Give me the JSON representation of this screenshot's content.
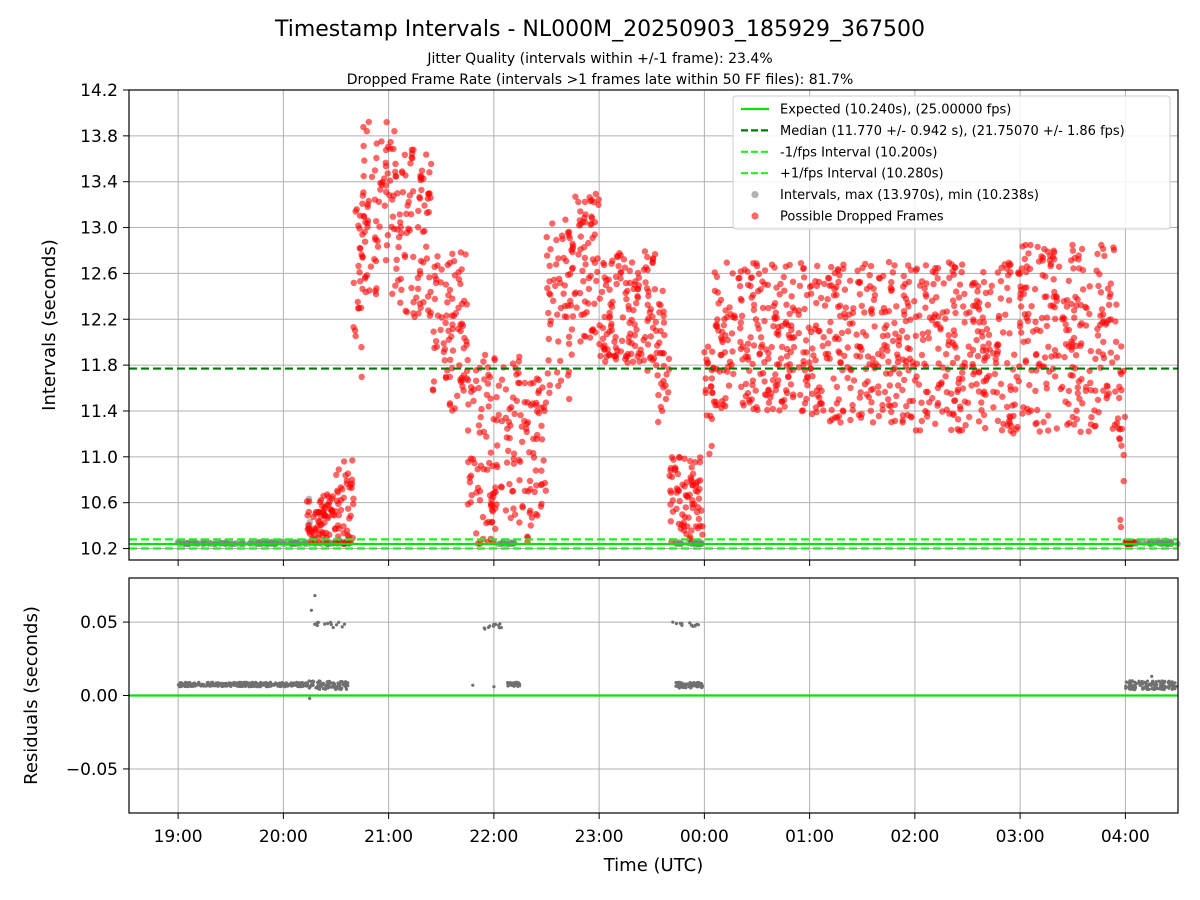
{
  "figure": {
    "title": "Timestamp Intervals - NL000M_20250903_185929_367500",
    "subtitle_1": "Jitter Quality (intervals within +/-1 frame): 23.4%",
    "subtitle_2": "Dropped Frame Rate (intervals >1 frames late within 50 FF files): 81.7%"
  },
  "colors": {
    "expected": "#00e400",
    "median": "#007700",
    "interval_band": "#22ee22",
    "normal_points": "#808080",
    "dropped_points": "#ff0000",
    "residual_points": "#707070",
    "grid": "#b0b0b0"
  },
  "chart_data": [
    {
      "id": "intervals",
      "type": "scatter",
      "title": "",
      "xlabel": "",
      "ylabel": "Intervals (seconds)",
      "x_type": "time",
      "xlim": [
        "18:32",
        "04:30"
      ],
      "ylim": [
        10.1,
        14.2
      ],
      "grid": true,
      "legend_position": "top-right",
      "x_ticks": [
        "19:00",
        "20:00",
        "21:00",
        "22:00",
        "23:00",
        "00:00",
        "01:00",
        "02:00",
        "03:00",
        "04:00"
      ],
      "y_ticks": [
        "10.2",
        "10.6",
        "11.0",
        "11.4",
        "11.8",
        "12.2",
        "12.6",
        "13.0",
        "13.4",
        "13.8",
        "14.2"
      ],
      "y_tick_values": [
        10.2,
        10.6,
        11.0,
        11.4,
        11.8,
        12.2,
        12.6,
        13.0,
        13.4,
        13.8,
        14.2
      ],
      "reference_lines": [
        {
          "name": "Expected (10.240s), (25.00000 fps)",
          "y": 10.24,
          "style": "solid"
        },
        {
          "name": "Median (11.770 +/- 0.942 s), (21.75070 +/- 1.86 fps)",
          "y": 11.77,
          "style": "dashed"
        },
        {
          "name": "-1/fps Interval (10.200s)",
          "y": 10.2,
          "style": "dashed"
        },
        {
          "name": "+1/fps Interval (10.280s)",
          "y": 10.28,
          "style": "dashed"
        }
      ],
      "series": [
        {
          "name": "Intervals, max (13.970s), min (10.238s)",
          "kind": "normal",
          "segments": [
            {
              "start": "19:00",
              "end": "20:13",
              "low": 10.24,
              "high": 10.26
            },
            {
              "start": "20:14",
              "end": "20:18",
              "low": 10.24,
              "high": 10.7
            },
            {
              "start": "20:18",
              "end": "20:37",
              "low": 10.24,
              "high": 10.26
            },
            {
              "start": "22:02",
              "end": "22:12",
              "low": 10.24,
              "high": 10.26
            },
            {
              "start": "23:43",
              "end": "23:59",
              "low": 10.24,
              "high": 10.26
            },
            {
              "start": "04:00",
              "end": "04:30",
              "low": 10.24,
              "high": 10.27
            }
          ]
        },
        {
          "name": "Possible Dropped Frames",
          "kind": "dropped",
          "segments": [
            {
              "start": "20:13",
              "end": "20:30",
              "low": 10.24,
              "high": 10.68
            },
            {
              "start": "20:30",
              "end": "20:40",
              "low": 10.24,
              "high": 10.97
            },
            {
              "start": "20:40",
              "end": "20:45",
              "low": 11.68,
              "high": 13.2
            },
            {
              "start": "20:45",
              "end": "21:05",
              "low": 12.4,
              "high": 13.97
            },
            {
              "start": "21:05",
              "end": "21:25",
              "low": 12.2,
              "high": 13.7
            },
            {
              "start": "21:25",
              "end": "21:45",
              "low": 11.4,
              "high": 12.8
            },
            {
              "start": "21:45",
              "end": "21:55",
              "low": 10.24,
              "high": 11.9
            },
            {
              "start": "21:55",
              "end": "22:15",
              "low": 10.24,
              "high": 11.9
            },
            {
              "start": "22:15",
              "end": "22:30",
              "low": 10.24,
              "high": 11.7
            },
            {
              "start": "22:30",
              "end": "22:45",
              "low": 11.5,
              "high": 13.1
            },
            {
              "start": "22:45",
              "end": "23:00",
              "low": 12.0,
              "high": 13.35
            },
            {
              "start": "23:00",
              "end": "23:20",
              "low": 11.8,
              "high": 12.8
            },
            {
              "start": "23:20",
              "end": "23:33",
              "low": 11.7,
              "high": 12.8
            },
            {
              "start": "23:33",
              "end": "23:40",
              "low": 11.3,
              "high": 12.5
            },
            {
              "start": "23:40",
              "end": "23:59",
              "low": 10.24,
              "high": 11.0
            },
            {
              "start": "00:00",
              "end": "00:05",
              "low": 11.0,
              "high": 12.0
            },
            {
              "start": "00:05",
              "end": "01:00",
              "low": 11.4,
              "high": 12.7
            },
            {
              "start": "01:00",
              "end": "02:00",
              "low": 11.3,
              "high": 12.7
            },
            {
              "start": "02:00",
              "end": "03:00",
              "low": 11.2,
              "high": 12.7
            },
            {
              "start": "03:00",
              "end": "03:55",
              "low": 11.2,
              "high": 12.85
            },
            {
              "start": "03:55",
              "end": "04:00",
              "low": 10.3,
              "high": 12.0
            },
            {
              "start": "04:00",
              "end": "04:05",
              "low": 10.24,
              "high": 10.26
            }
          ]
        }
      ]
    },
    {
      "id": "residuals",
      "type": "scatter",
      "title": "",
      "xlabel": "Time (UTC)",
      "ylabel": "Residuals (seconds)",
      "x_type": "time",
      "xlim": [
        "18:32",
        "04:30"
      ],
      "ylim": [
        -0.08,
        0.08
      ],
      "grid": true,
      "x_ticks": [
        "19:00",
        "20:00",
        "21:00",
        "22:00",
        "23:00",
        "00:00",
        "01:00",
        "02:00",
        "03:00",
        "04:00"
      ],
      "y_ticks": [
        "−0.05",
        "0.00",
        "0.05"
      ],
      "y_tick_values": [
        -0.05,
        0.0,
        0.05
      ],
      "reference_lines": [
        {
          "name": "zero",
          "y": 0.0,
          "style": "solid"
        }
      ],
      "series": [
        {
          "name": "Residuals",
          "kind": "residual",
          "segments": [
            {
              "start": "19:00",
              "end": "20:14",
              "low": 0.006,
              "high": 0.009
            },
            {
              "start": "20:14",
              "end": "20:37",
              "low": 0.004,
              "high": 0.01
            },
            {
              "start": "20:17",
              "end": "20:35",
              "low": 0.046,
              "high": 0.05
            },
            {
              "start": "21:50",
              "end": "22:05",
              "low": 0.045,
              "high": 0.049
            },
            {
              "start": "22:07",
              "end": "22:15",
              "low": 0.006,
              "high": 0.009
            },
            {
              "start": "23:43",
              "end": "23:59",
              "low": 0.005,
              "high": 0.009
            },
            {
              "start": "23:43",
              "end": "23:59",
              "low": 0.047,
              "high": 0.05
            },
            {
              "start": "04:00",
              "end": "04:30",
              "low": 0.004,
              "high": 0.01
            }
          ],
          "points": [
            {
              "x": "20:16",
              "y": 0.058
            },
            {
              "x": "20:18",
              "y": 0.068
            },
            {
              "x": "20:15",
              "y": -0.002
            },
            {
              "x": "21:48",
              "y": 0.007
            },
            {
              "x": "22:00",
              "y": 0.006
            },
            {
              "x": "23:42",
              "y": 0.05
            },
            {
              "x": "04:15",
              "y": 0.013
            }
          ]
        }
      ]
    }
  ]
}
